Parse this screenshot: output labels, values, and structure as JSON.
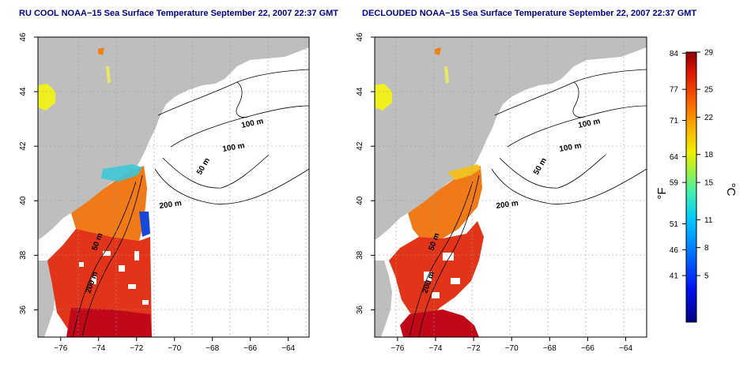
{
  "panels": [
    {
      "title": "RU COOL NOAA−15 Sea Surface Temperature September 22, 2007 22:37 GMT",
      "kind": "cloudy"
    },
    {
      "title": "DECLOUDED NOAA−15 Sea Surface Temperature September 22, 2007 22:37 GMT",
      "kind": "declouded"
    }
  ],
  "axes": {
    "lon_ticks": [
      -76,
      -74,
      -72,
      -70,
      -68,
      -66,
      -64
    ],
    "lat_ticks": [
      36,
      38,
      40,
      42,
      44,
      46
    ],
    "lon_labels": [
      "−76",
      "−74",
      "−72",
      "−70",
      "−68",
      "−66",
      "−64"
    ],
    "lat_labels": [
      "36",
      "38",
      "40",
      "42",
      "44",
      "46"
    ],
    "lon_range": [
      -77.2,
      -62.9
    ],
    "lat_range": [
      35.0,
      46.0
    ],
    "grid": true
  },
  "contour_labels": [
    "100 m",
    "100 m",
    "50 m",
    "200 m",
    "50 m",
    "200 m"
  ],
  "colorbar": {
    "fahrenheit_ticks": [
      "84",
      "77",
      "71",
      "64",
      "59",
      "51",
      "46",
      "41"
    ],
    "celsius_ticks": [
      "29",
      "25",
      "22",
      "18",
      "15",
      "11",
      "8",
      "5"
    ],
    "celsius_values": [
      29,
      25,
      22,
      18,
      15,
      11,
      8,
      5
    ],
    "fahrenheit_values": [
      84,
      77,
      71,
      64,
      59,
      51,
      46,
      41
    ],
    "range_c": [
      0,
      29
    ],
    "unit_f": "°F",
    "unit_c": "°C"
  },
  "colors": {
    "land": "#bebebe",
    "cloud": "#ffffff",
    "title": "#00008b",
    "warm": "#e03010",
    "hot": "#c00010",
    "mid": "#f08010",
    "yellow": "#f0f010",
    "cyan": "#30d0e0",
    "blue": "#1040e0"
  }
}
